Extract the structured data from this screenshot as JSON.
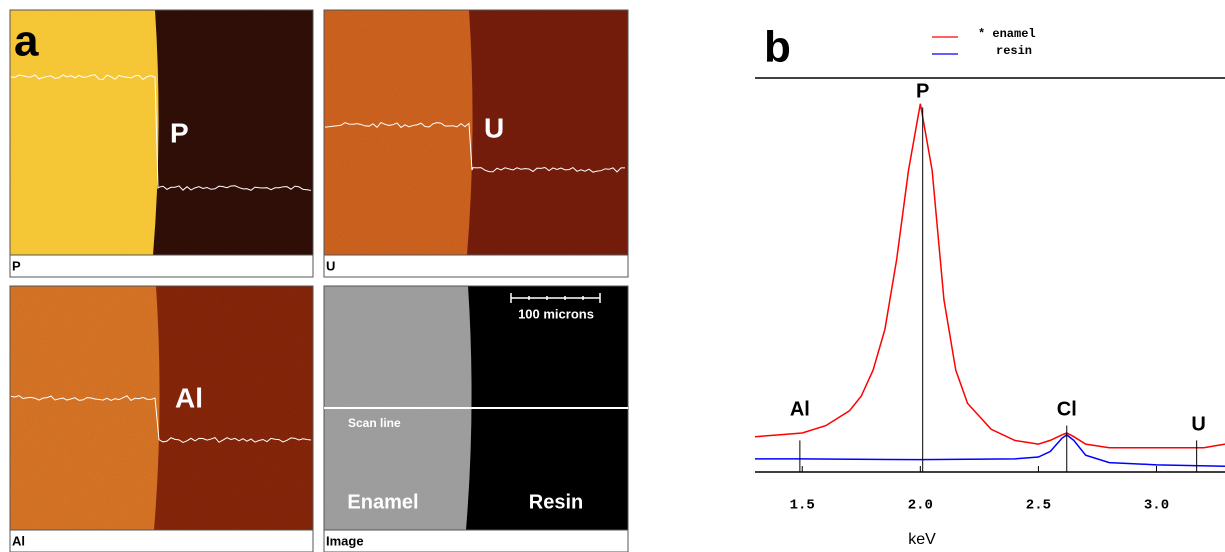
{
  "panel_a": {
    "label": "a",
    "maps": [
      {
        "caption": "P",
        "element": "P"
      },
      {
        "caption": "U",
        "element": "U"
      },
      {
        "caption": "Al",
        "element": "Al"
      },
      {
        "caption": "Image",
        "scale_bar": "100 microns",
        "scan_line": "Scan line",
        "left_region": "Enamel",
        "right_region": "Resin"
      }
    ]
  },
  "chart_data": {
    "type": "line",
    "panel_label": "b",
    "xlabel": "keV",
    "xlim": [
      1.3,
      3.29
    ],
    "ylim": [
      0,
      100
    ],
    "xticks": [
      1.5,
      {
        "value": 2,
        "label": "2.0"
      },
      2.5,
      {
        "value": 3,
        "label": "3.0"
      }
    ],
    "markers": [
      {
        "label": "Al",
        "value": 1.49
      },
      {
        "label": "P",
        "value": 2.01
      },
      {
        "label": "Cl",
        "value": 2.62
      },
      {
        "label": "U",
        "value": 3.17
      }
    ],
    "series": [
      {
        "name": "* enamel",
        "color": "#ff0000",
        "x": [
          1.3,
          1.4,
          1.5,
          1.6,
          1.7,
          1.75,
          1.8,
          1.85,
          1.9,
          1.95,
          2.0,
          2.05,
          2.1,
          2.15,
          2.2,
          2.3,
          2.4,
          2.5,
          2.55,
          2.6,
          2.62,
          2.65,
          2.7,
          2.8,
          3.0,
          3.2,
          3.29
        ],
        "values": [
          9,
          9.5,
          10,
          12,
          16,
          20,
          27,
          38,
          57,
          81,
          99,
          81,
          46,
          27,
          18,
          11,
          8,
          7,
          8,
          9.5,
          10,
          9,
          7,
          6,
          6,
          6,
          7
        ]
      },
      {
        "name": "resin",
        "color": "#0000ff",
        "x": [
          1.3,
          1.5,
          2.0,
          2.4,
          2.5,
          2.55,
          2.6,
          2.62,
          2.65,
          2.7,
          2.8,
          3.0,
          3.29
        ],
        "values": [
          3,
          3,
          2.8,
          3,
          3.5,
          5,
          8.6,
          9.5,
          8,
          4,
          2,
          1.4,
          1
        ]
      }
    ]
  }
}
